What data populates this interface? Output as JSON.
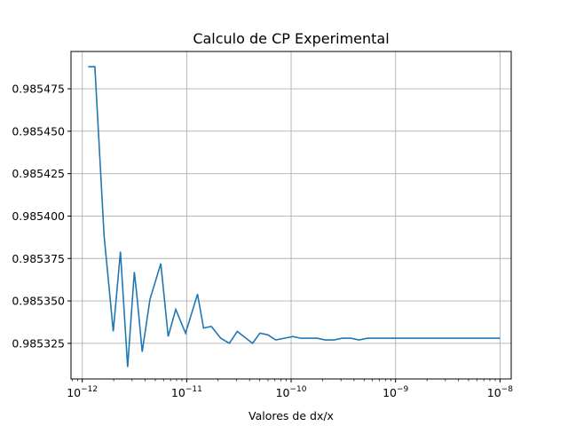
{
  "chart_data": {
    "type": "line",
    "title": "Calculo de CP Experimental",
    "xlabel": "Valores de dx/x",
    "ylabel": "",
    "xscale": "log",
    "xlim": [
      7.8e-13,
      1.28e-08
    ],
    "ylim": [
      0.985304,
      0.985497
    ],
    "grid": true,
    "x_ticks": [
      {
        "value": 1e-12,
        "base": "10",
        "exp": "−12"
      },
      {
        "value": 1e-11,
        "base": "10",
        "exp": "−11"
      },
      {
        "value": 1e-10,
        "base": "10",
        "exp": "−10"
      },
      {
        "value": 1e-09,
        "base": "10",
        "exp": "−9"
      },
      {
        "value": 1e-08,
        "base": "10",
        "exp": "−8"
      }
    ],
    "y_ticks": [
      {
        "value": 0.985325,
        "label": "0.985325"
      },
      {
        "value": 0.98535,
        "label": "0.985350"
      },
      {
        "value": 0.985375,
        "label": "0.985375"
      },
      {
        "value": 0.9854,
        "label": "0.985400"
      },
      {
        "value": 0.985425,
        "label": "0.985425"
      },
      {
        "value": 0.98545,
        "label": "0.985450"
      },
      {
        "value": 0.985475,
        "label": "0.985475"
      }
    ],
    "series": [
      {
        "color": "#1f77b4",
        "x": [
          1.14e-12,
          1.32e-12,
          1.62e-12,
          1.78e-12,
          1.98e-12,
          2.32e-12,
          2.72e-12,
          3.15e-12,
          3.35e-12,
          3.75e-12,
          4.45e-12,
          5.65e-12,
          6.65e-12,
          7.85e-12,
          9.75e-12,
          1.27e-11,
          1.45e-11,
          1.72e-11,
          2.12e-11,
          2.56e-11,
          3.05e-11,
          4.27e-11,
          5.02e-11,
          5.99e-11,
          7.11e-11,
          8.6e-11,
          1.04e-10,
          1.23e-10,
          1.47e-10,
          1.77e-10,
          2.12e-10,
          2.57e-10,
          3.09e-10,
          3.73e-10,
          4.48e-10,
          5.4e-10,
          6.5e-10,
          7.85e-10,
          9.45e-10,
          1.14e-09,
          1.37e-09,
          1.65e-09,
          2e-09,
          2.41e-09,
          2.9e-09,
          3.49e-09,
          4.2e-09,
          5.06e-09,
          6.1e-09,
          7.35e-09,
          8.85e-09,
          1e-08
        ],
        "y": [
          0.985488,
          0.985488,
          0.985388,
          0.985362,
          0.985332,
          0.985379,
          0.985311,
          0.985367,
          0.985352,
          0.98532,
          0.985351,
          0.985372,
          0.985329,
          0.985345,
          0.985331,
          0.985354,
          0.985334,
          0.985335,
          0.985328,
          0.985325,
          0.985332,
          0.985325,
          0.985331,
          0.98533,
          0.985327,
          0.985328,
          0.985329,
          0.985328,
          0.985328,
          0.985328,
          0.985327,
          0.985327,
          0.985328,
          0.985328,
          0.985327,
          0.985328,
          0.985328,
          0.985328,
          0.985328,
          0.985328,
          0.985328,
          0.985328,
          0.985328,
          0.985328,
          0.985328,
          0.985328,
          0.985328,
          0.985328,
          0.985328,
          0.985328,
          0.985328,
          0.985328
        ]
      }
    ]
  }
}
